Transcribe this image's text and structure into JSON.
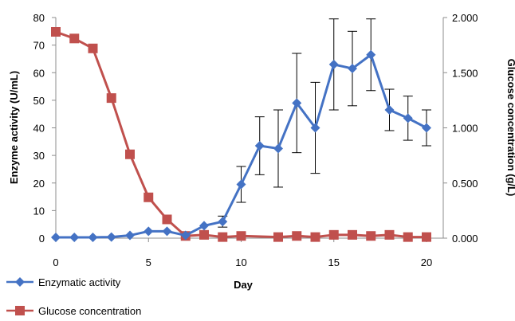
{
  "chart_data": {
    "type": "line",
    "xlabel": "Day",
    "ylabel_left": "Enzyme activity (U/mL)",
    "ylabel_right": "Glucose concentration (g/L)",
    "xlim": [
      0,
      20
    ],
    "xticks": [
      "0",
      "5",
      "10",
      "15",
      "20"
    ],
    "ylim_left": [
      0,
      80
    ],
    "yticks_left": [
      "0",
      "10",
      "20",
      "30",
      "40",
      "50",
      "60",
      "70",
      "80"
    ],
    "ylim_right": [
      0,
      2
    ],
    "yticks_right": [
      "0.000",
      "0.500",
      "1.000",
      "1.500",
      "2.000"
    ],
    "grid": false,
    "legend_position": "bottom-left",
    "series": [
      {
        "name": "Enzymatic activity",
        "axis": "left",
        "color": "#4472C4",
        "marker": "diamond",
        "x": [
          0,
          1,
          2,
          3,
          4,
          5,
          6,
          7,
          8,
          9,
          10,
          11,
          12,
          13,
          14,
          15,
          16,
          17,
          18,
          19,
          20
        ],
        "y": [
          0.3,
          0.3,
          0.3,
          0.4,
          1,
          2.5,
          2.5,
          1,
          4.5,
          6,
          19.5,
          33.5,
          32.5,
          49,
          40,
          63,
          61.5,
          66.5,
          46.5,
          43.5,
          40
        ],
        "error": [
          0,
          0,
          0,
          0,
          0,
          0,
          0,
          0,
          0,
          2,
          6.5,
          10.5,
          14,
          18,
          16.5,
          16.5,
          13.5,
          13,
          7.5,
          8,
          6.5
        ]
      },
      {
        "name": "Glucose concentration",
        "axis": "right",
        "color": "#C0504D",
        "marker": "square",
        "x": [
          0,
          1,
          2,
          3,
          4,
          5,
          6,
          7,
          8,
          9,
          10,
          12,
          13,
          14,
          15,
          16,
          17,
          18,
          19,
          20
        ],
        "y": [
          1.87,
          1.81,
          1.72,
          1.27,
          0.76,
          0.37,
          0.17,
          0.02,
          0.03,
          0.01,
          0.02,
          0.01,
          0.02,
          0.01,
          0.03,
          0.03,
          0.02,
          0.03,
          0.01,
          0.01
        ]
      }
    ]
  }
}
